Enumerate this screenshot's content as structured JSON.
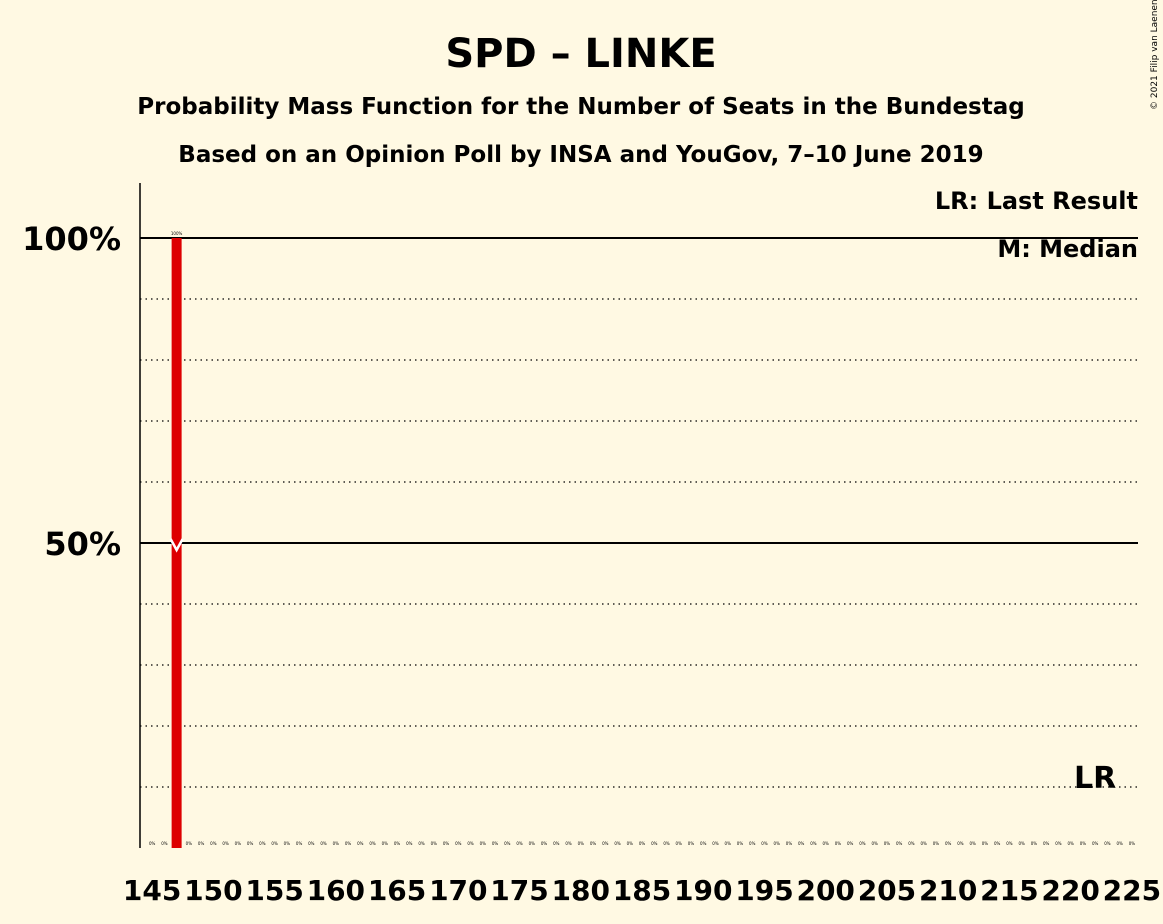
{
  "chart_data": {
    "type": "bar",
    "title": "SPD – LINKE",
    "subtitle": "Probability Mass Function for the Number of Seats in the Bundestag",
    "subtitle2": "Based on an Opinion Poll by INSA and YouGov, 7–10 June 2019",
    "copyright": "© 2021 Filip van Laenen",
    "legend": [
      "LR: Last Result",
      "M: Median"
    ],
    "legend_position": "top-right",
    "x_range": [
      145,
      225
    ],
    "x_tick_step": 5,
    "x_tick_labels": [
      "145",
      "150",
      "155",
      "160",
      "165",
      "170",
      "175",
      "180",
      "185",
      "190",
      "195",
      "200",
      "205",
      "210",
      "215",
      "220",
      "225"
    ],
    "ylim": [
      0,
      1.1
    ],
    "y_major_ticks": [
      {
        "value": 0.5,
        "label": "50%"
      },
      {
        "value": 1.0,
        "label": "100%"
      }
    ],
    "y_minor_step": 0.1,
    "bar_color": "#DD0000",
    "bars": [
      {
        "x": 147,
        "value": 1.0,
        "label": "100%"
      }
    ],
    "zero_label": "0%",
    "median": {
      "x": 147,
      "marker": "M"
    },
    "last_result": {
      "x": 222,
      "label": "LR"
    }
  }
}
